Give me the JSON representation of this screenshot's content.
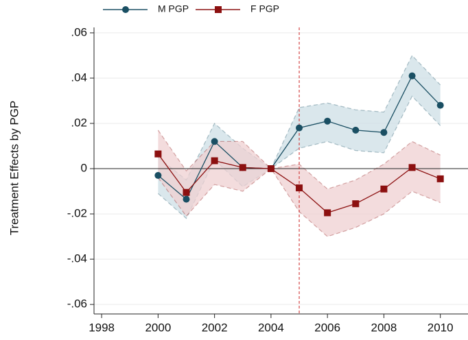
{
  "chart_data": {
    "type": "line",
    "y_label": "Treatment Effects by PGP",
    "x": [
      2000,
      2001,
      2002,
      2003,
      2004,
      2005,
      2006,
      2007,
      2008,
      2009,
      2010
    ],
    "series": [
      {
        "name": "M PGP",
        "color": "#1a4f63",
        "band_color": "#cddfe6",
        "marker": "circle",
        "values": [
          -0.003,
          -0.0135,
          0.012,
          0.0005,
          0,
          0.018,
          0.021,
          0.017,
          0.016,
          0.041,
          0.028
        ],
        "ci_lower": [
          -0.011,
          -0.022,
          0.004,
          -0.008,
          0,
          0.009,
          0.012,
          0.008,
          0.007,
          0.032,
          0.019
        ],
        "ci_upper": [
          0.005,
          -0.005,
          0.02,
          0.009,
          0,
          0.027,
          0.029,
          0.026,
          0.025,
          0.05,
          0.037
        ]
      },
      {
        "name": "F PGP",
        "color": "#8c1010",
        "band_color": "#efd0d2",
        "marker": "square",
        "values": [
          0.0065,
          -0.0105,
          0.0035,
          0.0005,
          0,
          -0.0085,
          -0.0195,
          -0.0155,
          -0.009,
          0.0005,
          -0.0045
        ],
        "ci_lower": [
          -0.004,
          -0.021,
          -0.007,
          -0.01,
          0,
          -0.019,
          -0.03,
          -0.026,
          -0.02,
          -0.01,
          -0.015
        ],
        "ci_upper": [
          0.017,
          -0.001,
          0.012,
          0.012,
          0,
          0.002,
          -0.009,
          -0.005,
          0.002,
          0.012,
          0.006
        ]
      }
    ],
    "xlim": [
      1997.73,
      2010.98
    ],
    "xticks": [
      1998,
      2000,
      2002,
      2004,
      2006,
      2008,
      2010
    ],
    "ylim": [
      -0.0642,
      0.0624
    ],
    "yticks": [
      {
        "value": 0.06,
        "label": ".06"
      },
      {
        "value": 0.04,
        "label": ".04"
      },
      {
        "value": 0.02,
        "label": ".02"
      },
      {
        "value": 0,
        "label": "0"
      },
      {
        "value": -0.02,
        "label": "-.02"
      },
      {
        "value": -0.04,
        "label": "-.04"
      },
      {
        "value": -0.06,
        "label": "-.06"
      }
    ],
    "grid": true,
    "hline": 0,
    "vline": 2005,
    "vline_color": "#cc2222",
    "legend": "top"
  }
}
